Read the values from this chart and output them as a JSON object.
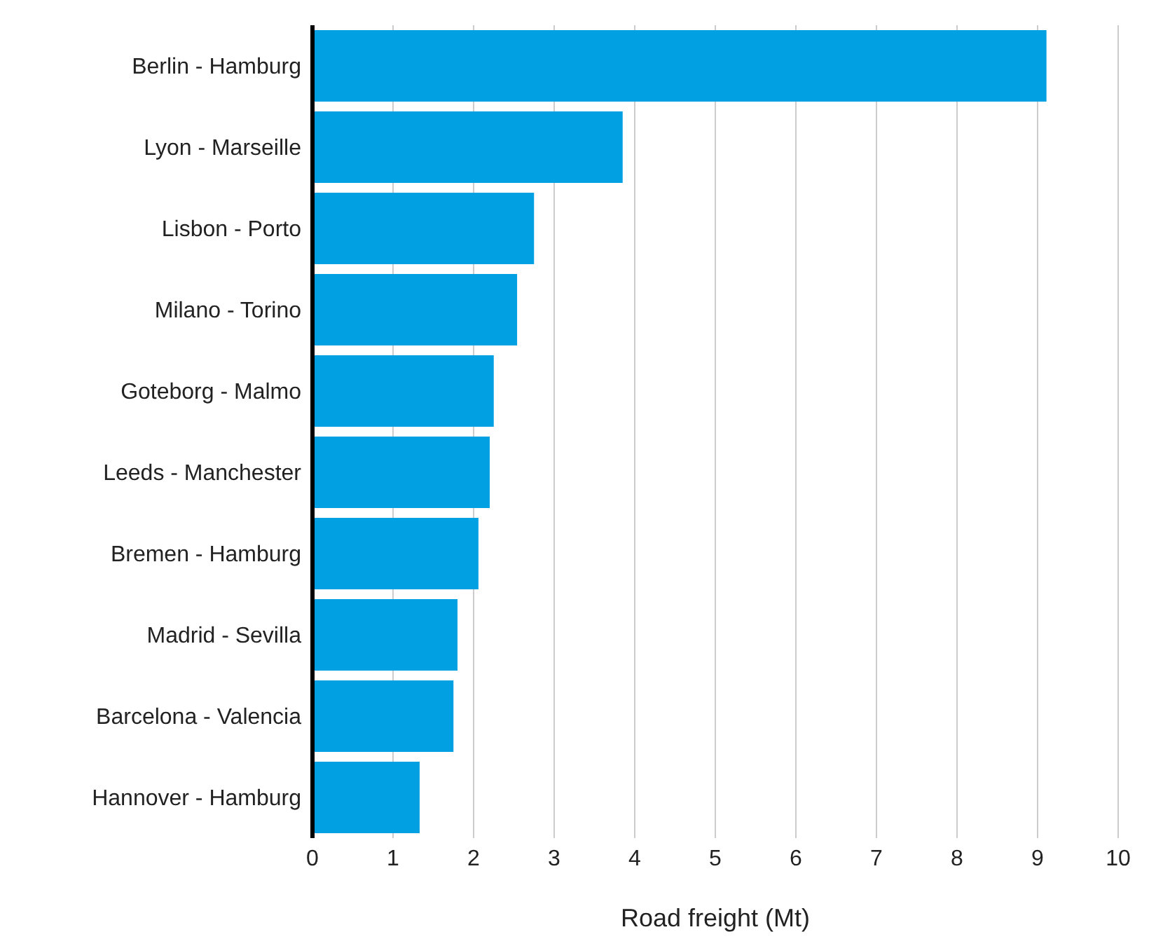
{
  "chart_data": {
    "type": "bar",
    "orientation": "horizontal",
    "xlabel": "Road freight (Mt)",
    "categories": [
      "Berlin - Hamburg",
      "Lyon - Marseille",
      "Lisbon - Porto",
      "Milano - Torino",
      "Goteborg - Malmo",
      "Leeds - Manchester",
      "Bremen - Hamburg",
      "Madrid - Sevilla",
      "Barcelona - Valencia",
      "Hannover - Hamburg"
    ],
    "values": [
      9.11,
      3.85,
      2.75,
      2.54,
      2.25,
      2.2,
      2.06,
      1.8,
      1.75,
      1.33
    ],
    "color": "#00a0e3",
    "xlim": [
      0,
      10
    ],
    "xticks": [
      0,
      1,
      2,
      3,
      4,
      5,
      6,
      7,
      8,
      9,
      10
    ],
    "grid": "x"
  }
}
